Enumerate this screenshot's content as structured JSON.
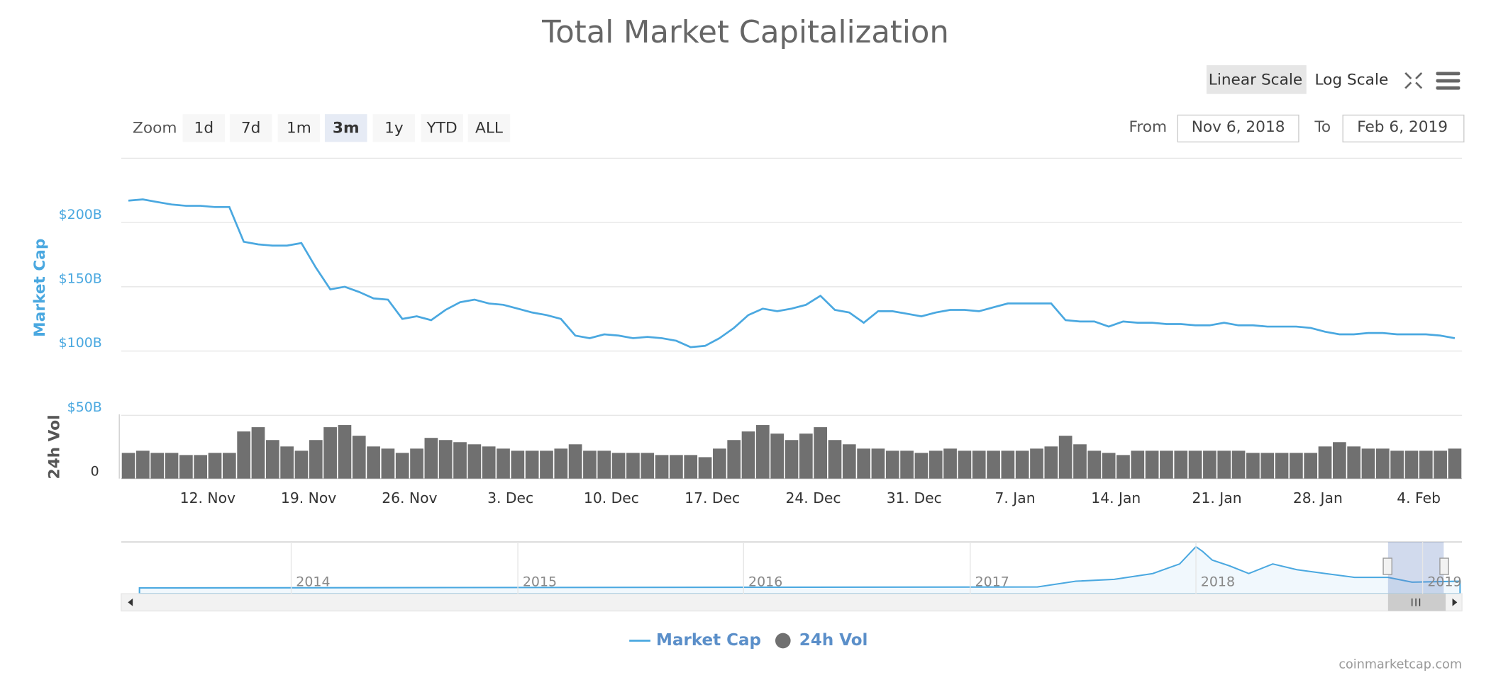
{
  "ui": {
    "scale_buttons": [
      "Linear Scale",
      "Log Scale"
    ],
    "zoom_label": "Zoom",
    "zoom_buttons": [
      "1d",
      "7d",
      "1m",
      "3m",
      "1y",
      "YTD",
      "ALL"
    ],
    "from_label": "From",
    "from_value": "Nov 6, 2018",
    "to_label": "To",
    "to_value": "Feb 6, 2019",
    "credit": "coinmarketcap.com"
  },
  "chart_data": {
    "type": "line",
    "title": "Total Market Capitalization",
    "y_label": "Market Cap",
    "y2_label": "24h Vol",
    "categories": [
      null,
      null,
      null,
      null,
      null,
      null,
      "12. Nov",
      null,
      null,
      null,
      null,
      null,
      null,
      "19. Nov",
      null,
      null,
      null,
      null,
      null,
      null,
      "26. Nov",
      null,
      null,
      null,
      null,
      null,
      null,
      "3. Dec",
      null,
      null,
      null,
      null,
      null,
      null,
      "10. Dec",
      null,
      null,
      null,
      null,
      null,
      null,
      "17. Dec",
      null,
      null,
      null,
      null,
      null,
      null,
      "24. Dec",
      null,
      null,
      null,
      null,
      null,
      null,
      "31. Dec",
      null,
      null,
      null,
      null,
      null,
      null,
      "7. Jan",
      null,
      null,
      null,
      null,
      null,
      null,
      "14. Jan",
      null,
      null,
      null,
      null,
      null,
      null,
      "21. Jan",
      null,
      null,
      null,
      null,
      null,
      null,
      "28. Jan",
      null,
      null,
      null,
      null,
      null,
      null,
      "4. Feb",
      null,
      null
    ],
    "series": [
      {
        "name": "Market Cap",
        "type": "line",
        "color": "#4aa8e0",
        "values": [
          217,
          218,
          216,
          214,
          213,
          213,
          212,
          212,
          185,
          183,
          182,
          182,
          184,
          165,
          148,
          150,
          146,
          141,
          140,
          125,
          127,
          124,
          132,
          138,
          140,
          137,
          136,
          133,
          130,
          128,
          125,
          112,
          110,
          113,
          112,
          110,
          111,
          110,
          108,
          103,
          104,
          110,
          118,
          128,
          133,
          131,
          133,
          136,
          143,
          132,
          130,
          122,
          131,
          131,
          129,
          127,
          130,
          132,
          132,
          131,
          134,
          137,
          137,
          137,
          137,
          124,
          123,
          123,
          119,
          123,
          122,
          122,
          121,
          121,
          120,
          120,
          122,
          120,
          120,
          119,
          119,
          119,
          118,
          115,
          113,
          113,
          114,
          114,
          113,
          113,
          113,
          112,
          110
        ]
      },
      {
        "name": "24h Vol",
        "type": "bar",
        "axis": "y2",
        "color": "#707070",
        "values": [
          12,
          13,
          12,
          12,
          11,
          11,
          12,
          12,
          22,
          24,
          18,
          15,
          13,
          18,
          24,
          25,
          20,
          15,
          14,
          12,
          14,
          19,
          18,
          17,
          16,
          15,
          14,
          13,
          13,
          13,
          14,
          16,
          13,
          13,
          12,
          12,
          12,
          11,
          11,
          11,
          10,
          14,
          18,
          22,
          25,
          21,
          18,
          21,
          24,
          18,
          16,
          14,
          14,
          13,
          13,
          12,
          13,
          14,
          13,
          13,
          13,
          13,
          13,
          14,
          15,
          20,
          16,
          13,
          12,
          11,
          13,
          13,
          13,
          13,
          13,
          13,
          13,
          13,
          12,
          12,
          12,
          12,
          12,
          15,
          17,
          15,
          14,
          14,
          13,
          13,
          13,
          13,
          14
        ]
      }
    ],
    "ylim": [
      50,
      250
    ],
    "yticks": [
      {
        "value": 50,
        "label": "$50B"
      },
      {
        "value": 100,
        "label": "$100B"
      },
      {
        "value": 150,
        "label": "$150B"
      },
      {
        "value": 200,
        "label": "$200B"
      }
    ],
    "y2lim": [
      0,
      30
    ],
    "y2ticks": [
      0
    ],
    "grid": true,
    "navigator_labels": [
      "2014",
      "2015",
      "2016",
      "2017",
      "2018",
      "2019"
    ]
  }
}
